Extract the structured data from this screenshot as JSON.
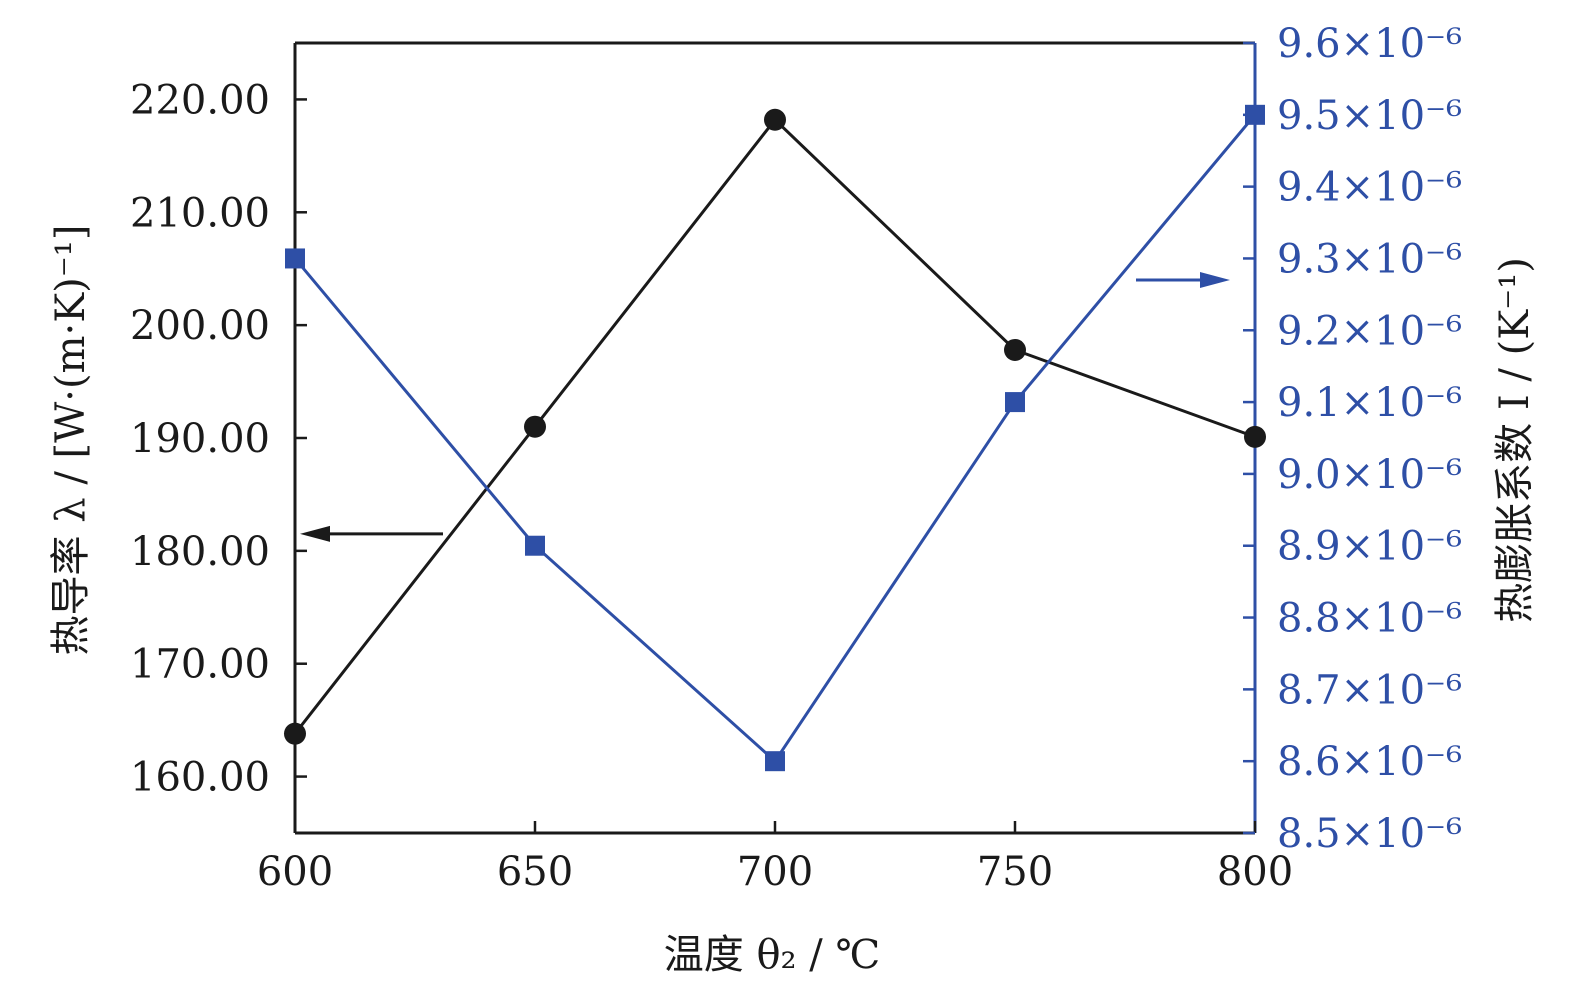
{
  "chart_data": {
    "type": "line",
    "x": [
      600,
      650,
      700,
      750,
      800
    ],
    "x_ticks": [
      "600",
      "650",
      "700",
      "750",
      "800"
    ],
    "xlim": [
      600,
      800
    ],
    "xlabel": "温度 θ₂ / ℃",
    "ylabel_left": "热导率 λ / [W·(m·K)⁻¹]",
    "ylabel_right": "热膨胀系数 I / (K⁻¹)",
    "ylim_left": [
      155,
      225
    ],
    "ylim_right": [
      8.5,
      9.6
    ],
    "y_left_ticks": [
      {
        "value": 160,
        "label": "160.00"
      },
      {
        "value": 170,
        "label": "170.00"
      },
      {
        "value": 180,
        "label": "180.00"
      },
      {
        "value": 190,
        "label": "190.00"
      },
      {
        "value": 200,
        "label": "200.00"
      },
      {
        "value": 210,
        "label": "210.00"
      },
      {
        "value": 220,
        "label": "220.00"
      }
    ],
    "y_right_tick_values": [
      8.5,
      8.6,
      8.7,
      8.8,
      8.9,
      9.0,
      9.1,
      9.2,
      9.3,
      9.4,
      9.5,
      9.6
    ],
    "y_right_tick_labels": [
      "8.5×10⁻⁶",
      "8.6×10⁻⁶",
      "8.7×10⁻⁶",
      "8.8×10⁻⁶",
      "8.9×10⁻⁶",
      "9.0×10⁻⁶",
      "9.1×10⁻⁶",
      "9.2×10⁻⁶",
      "9.3×10⁻⁶",
      "9.4×10⁻⁶",
      "9.5×10⁻⁶",
      "9.6×10⁻⁶"
    ],
    "series": [
      {
        "axis": "left",
        "marker": "circle",
        "color": "#1a1a1a",
        "values": [
          163.8,
          191.0,
          218.2,
          197.8,
          190.1
        ]
      },
      {
        "axis": "right",
        "marker": "square",
        "color": "#2e4fa6",
        "values": [
          9.3,
          8.9,
          8.6,
          9.1,
          9.5
        ]
      }
    ],
    "grid": false
  }
}
